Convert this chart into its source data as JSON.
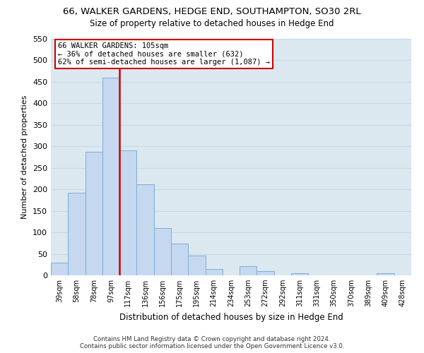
{
  "title": "66, WALKER GARDENS, HEDGE END, SOUTHAMPTON, SO30 2RL",
  "subtitle": "Size of property relative to detached houses in Hedge End",
  "xlabel": "Distribution of detached houses by size in Hedge End",
  "ylabel": "Number of detached properties",
  "bar_labels": [
    "39sqm",
    "58sqm",
    "78sqm",
    "97sqm",
    "117sqm",
    "136sqm",
    "156sqm",
    "175sqm",
    "195sqm",
    "214sqm",
    "234sqm",
    "253sqm",
    "272sqm",
    "292sqm",
    "311sqm",
    "331sqm",
    "350sqm",
    "370sqm",
    "389sqm",
    "409sqm",
    "428sqm"
  ],
  "bar_values": [
    30,
    192,
    287,
    460,
    291,
    212,
    110,
    74,
    46,
    14,
    0,
    22,
    10,
    0,
    5,
    0,
    0,
    0,
    0,
    5,
    0
  ],
  "bar_color": "#c5d8ef",
  "bar_edge_color": "#7bafd4",
  "ylim": [
    0,
    550
  ],
  "yticks": [
    0,
    50,
    100,
    150,
    200,
    250,
    300,
    350,
    400,
    450,
    500,
    550
  ],
  "vline_index": 3.5,
  "vline_color": "#cc0000",
  "annotation_line1": "66 WALKER GARDENS: 105sqm",
  "annotation_line2": "← 36% of detached houses are smaller (632)",
  "annotation_line3": "62% of semi-detached houses are larger (1,087) →",
  "annotation_box_color": "#ffffff",
  "annotation_box_edge": "#cc0000",
  "footer_line1": "Contains HM Land Registry data © Crown copyright and database right 2024.",
  "footer_line2": "Contains public sector information licensed under the Open Government Licence v3.0.",
  "grid_color": "#c8d8e8",
  "background_color": "#dce8f0"
}
